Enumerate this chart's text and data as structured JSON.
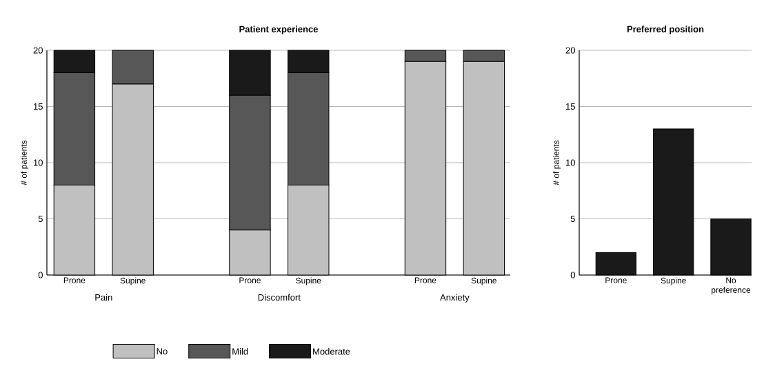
{
  "chart_data": [
    {
      "type": "bar",
      "title": "Patient experience",
      "ylabel": "# of patients",
      "stacked": true,
      "categories": [
        "Prone",
        "Supine",
        null,
        "Prone",
        "Supine",
        null,
        "Prone",
        "Supine"
      ],
      "series": [
        {
          "name": "No",
          "color": "#c0c0c0",
          "values": [
            8,
            17,
            null,
            4,
            8,
            null,
            19,
            19
          ]
        },
        {
          "name": "Mild",
          "color": "#575757",
          "values": [
            10,
            3,
            null,
            12,
            10,
            null,
            1,
            1
          ]
        },
        {
          "name": "Moderate",
          "color": "#1a1a1a",
          "values": [
            2,
            0,
            null,
            4,
            2,
            null,
            0,
            0
          ]
        }
      ],
      "annotations": [
        "Pain",
        "Discomfort",
        "Anxiety"
      ],
      "ylim": [
        0,
        20
      ],
      "yticks": [
        0,
        5,
        10,
        15,
        20
      ],
      "grid": "y",
      "legend": "bottom"
    },
    {
      "type": "bar",
      "title": "Preferred position",
      "ylabel": "# of patients",
      "categories": [
        "Prone",
        "Supine",
        "No preference"
      ],
      "values": [
        2,
        13,
        5
      ],
      "color": "#1a1a1a",
      "ylim": [
        0,
        20
      ],
      "yticks": [
        0,
        5,
        10,
        15,
        20
      ],
      "grid": "y"
    }
  ]
}
